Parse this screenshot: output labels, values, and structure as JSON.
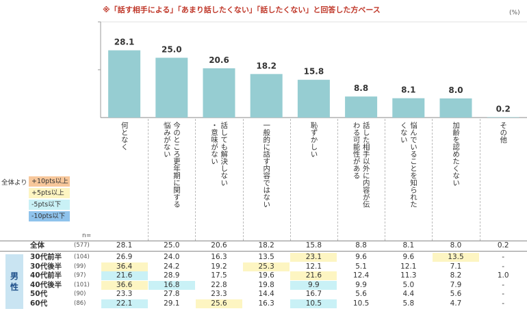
{
  "note": "※「話す相手による」「あまり話したくない」「話したくない」と回答した方ベース",
  "unit": "(%)",
  "chart_data": {
    "type": "bar",
    "categories": [
      "何となく",
      "今のところ更年期に関する悩みがない",
      "話しても解決しない・意味がない",
      "一般的に話す内容ではない",
      "恥ずかしい",
      "話した相手以外に内容が伝わる可能性がある",
      "悩んでいることを知られたくない",
      "加齢を認めたくない",
      "その他"
    ],
    "values": [
      28.1,
      25.0,
      20.6,
      18.2,
      15.8,
      8.8,
      8.1,
      8.0,
      0.2
    ],
    "value_labels": [
      "28.1",
      "25.0",
      "20.6",
      "18.2",
      "15.8",
      "8.8",
      "8.1",
      "8.0",
      "0.2"
    ],
    "ylim": [
      0,
      40
    ],
    "grid": true
  },
  "categories_display": [
    [
      "何となく"
    ],
    [
      "今のところ更年期に関する",
      "悩みがない"
    ],
    [
      "話しても解決しない",
      "・意味がない"
    ],
    [
      "一般的に話す内容ではない"
    ],
    [
      "恥ずかしい"
    ],
    [
      "話した相手以外に内容が伝",
      "わる可能性がある"
    ],
    [
      "悩んでいることを知られた",
      "くない"
    ],
    [
      "加齢を認めたくない"
    ],
    [
      "その他"
    ]
  ],
  "legend": {
    "title": "全体より",
    "items": [
      {
        "label": "+10pts以上",
        "color": "#f7c79b"
      },
      {
        "label": "+5pts以上",
        "color": "#fdf5c2"
      },
      {
        "label": "-5pts以下",
        "color": "#c9f1f6"
      },
      {
        "label": "-10pts以下",
        "color": "#8fc3ec"
      }
    ]
  },
  "n_label": "n=",
  "group_label": [
    "男",
    "性"
  ],
  "table": {
    "total": {
      "label": "全体",
      "n": "(577)",
      "values": [
        "28.1",
        "25.0",
        "20.6",
        "18.2",
        "15.8",
        "8.8",
        "8.1",
        "8.0",
        "0.2"
      ],
      "hl": [
        "",
        "",
        "",
        "",
        "",
        "",
        "",
        "",
        ""
      ]
    },
    "rows": [
      {
        "label": "30代前半",
        "n": "(104)",
        "values": [
          "26.9",
          "24.0",
          "16.3",
          "13.5",
          "23.1",
          "9.6",
          "9.6",
          "13.5",
          "-"
        ],
        "hl": [
          "",
          "",
          "",
          "",
          "yellow",
          "",
          "",
          "yellow",
          ""
        ]
      },
      {
        "label": "30代後半",
        "n": "(99)",
        "values": [
          "36.4",
          "24.2",
          "19.2",
          "25.3",
          "12.1",
          "5.1",
          "12.1",
          "7.1",
          "-"
        ],
        "hl": [
          "yellow",
          "",
          "",
          "yellow",
          "",
          "",
          "",
          "",
          ""
        ]
      },
      {
        "label": "40代前半",
        "n": "(97)",
        "values": [
          "21.6",
          "28.9",
          "17.5",
          "19.6",
          "21.6",
          "12.4",
          "11.3",
          "8.2",
          "1.0"
        ],
        "hl": [
          "cyan",
          "",
          "",
          "",
          "yellow",
          "",
          "",
          "",
          ""
        ]
      },
      {
        "label": "40代後半",
        "n": "(101)",
        "values": [
          "36.6",
          "16.8",
          "22.8",
          "19.8",
          "9.9",
          "9.9",
          "5.0",
          "7.9",
          "-"
        ],
        "hl": [
          "yellow",
          "cyan",
          "",
          "",
          "cyan",
          "",
          "",
          "",
          ""
        ]
      },
      {
        "label": "50代",
        "n": "(90)",
        "values": [
          "23.3",
          "27.8",
          "23.3",
          "14.4",
          "16.7",
          "5.6",
          "4.4",
          "5.6",
          "-"
        ],
        "hl": [
          "",
          "",
          "",
          "",
          "",
          "",
          "",
          "",
          ""
        ]
      },
      {
        "label": "60代",
        "n": "(86)",
        "values": [
          "22.1",
          "29.1",
          "25.6",
          "16.3",
          "10.5",
          "10.5",
          "5.8",
          "4.7",
          "-"
        ],
        "hl": [
          "cyan",
          "",
          "yellow",
          "",
          "cyan",
          "",
          "",
          "",
          ""
        ]
      }
    ]
  }
}
